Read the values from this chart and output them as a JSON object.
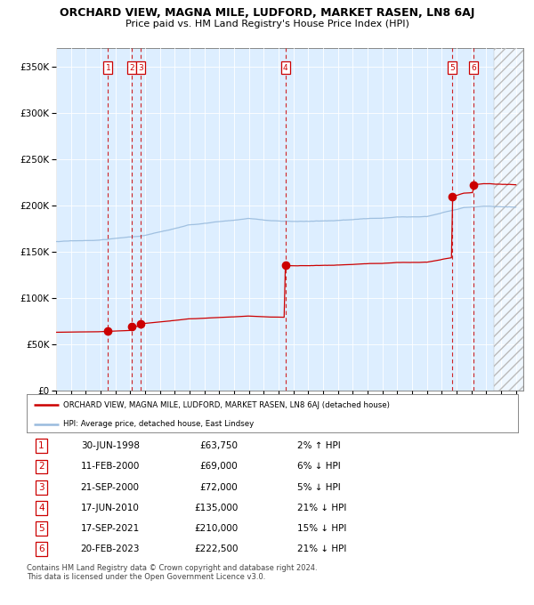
{
  "title": "ORCHARD VIEW, MAGNA MILE, LUDFORD, MARKET RASEN, LN8 6AJ",
  "subtitle": "Price paid vs. HM Land Registry's House Price Index (HPI)",
  "xlim_start": 1995.0,
  "xlim_end": 2026.5,
  "ylim": [
    0,
    370000
  ],
  "yticks": [
    0,
    50000,
    100000,
    150000,
    200000,
    250000,
    300000,
    350000
  ],
  "ytick_labels": [
    "£0",
    "£50K",
    "£100K",
    "£150K",
    "£200K",
    "£250K",
    "£300K",
    "£350K"
  ],
  "background_color": "#ffffff",
  "plot_bg_color": "#ddeeff",
  "hatch_region_start": 2024.5,
  "sale_points": [
    {
      "num": 1,
      "year": 1998.5,
      "price": 63750
    },
    {
      "num": 2,
      "year": 2000.12,
      "price": 69000
    },
    {
      "num": 3,
      "year": 2000.72,
      "price": 72000
    },
    {
      "num": 4,
      "year": 2010.46,
      "price": 135000
    },
    {
      "num": 5,
      "year": 2021.71,
      "price": 210000
    },
    {
      "num": 6,
      "year": 2023.13,
      "price": 222500
    }
  ],
  "legend_line1": "ORCHARD VIEW, MAGNA MILE, LUDFORD, MARKET RASEN, LN8 6AJ (detached house)",
  "legend_line2": "HPI: Average price, detached house, East Lindsey",
  "table_rows": [
    {
      "num": 1,
      "date": "30-JUN-1998",
      "price": "£63,750",
      "pct": "2% ↑ HPI"
    },
    {
      "num": 2,
      "date": "11-FEB-2000",
      "price": "£69,000",
      "pct": "6% ↓ HPI"
    },
    {
      "num": 3,
      "date": "21-SEP-2000",
      "price": "£72,000",
      "pct": "5% ↓ HPI"
    },
    {
      "num": 4,
      "date": "17-JUN-2010",
      "price": "£135,000",
      "pct": "21% ↓ HPI"
    },
    {
      "num": 5,
      "date": "17-SEP-2021",
      "price": "£210,000",
      "pct": "15% ↓ HPI"
    },
    {
      "num": 6,
      "date": "20-FEB-2023",
      "price": "£222,500",
      "pct": "21% ↓ HPI"
    }
  ],
  "footer": "Contains HM Land Registry data © Crown copyright and database right 2024.\nThis data is licensed under the Open Government Licence v3.0.",
  "red_color": "#cc0000",
  "blue_color": "#99bbdd"
}
